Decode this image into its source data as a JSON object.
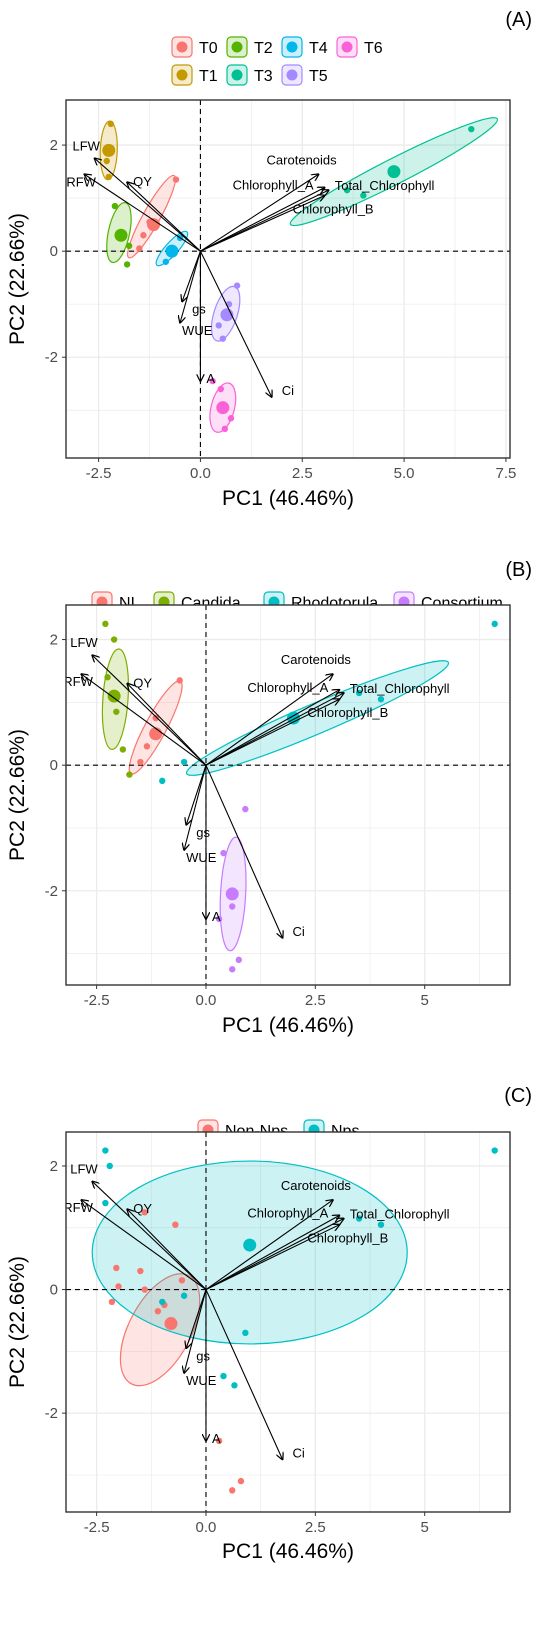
{
  "colors": {
    "T0": "#F8766D",
    "T1": "#C49A00",
    "T2": "#53B400",
    "T3": "#00C094",
    "T4": "#00B6EB",
    "T5": "#A58AFF",
    "T6": "#FB61D7",
    "NI": "#F8766D",
    "Candida": "#7CAE00",
    "Rhodotorula": "#00BFC4",
    "Consortium": "#C77CFF",
    "Non-Nps": "#F8766D",
    "Nps": "#00BFC4",
    "panel_border": "#333333",
    "grid": "#EBEBEB",
    "text": "#000000",
    "axis_text": "#4D4D4D"
  },
  "chart_data": [
    {
      "type": "scatter",
      "panel_label": "(A)",
      "xlabel": "PC1 (46.46%)",
      "ylabel": "PC2 (22.66%)",
      "xlim": [
        -3.3,
        7.6
      ],
      "ylim": [
        -3.9,
        2.85
      ],
      "xticks": [
        -2.5,
        0,
        2.5,
        5,
        7.5
      ],
      "xtick_labels": [
        "-2.5",
        "0.0",
        "2.5",
        "5.0",
        "7.5"
      ],
      "yticks": [
        -2,
        0,
        2
      ],
      "ytick_labels": [
        "-2",
        "0",
        "2"
      ],
      "grid": true,
      "legend_position": "top",
      "legend_rows": [
        [
          "T0",
          "T2",
          "T4",
          "T6"
        ],
        [
          "T1",
          "T3",
          "T5"
        ]
      ],
      "series": [
        {
          "name": "T0",
          "points": [
            [
              -1.4,
              0.3
            ],
            [
              -1.25,
              0.55
            ],
            [
              -0.6,
              1.35
            ],
            [
              -1.5,
              0.05
            ]
          ],
          "centroid": [
            -1.15,
            0.5
          ],
          "ellipse": {
            "cx": -1.2,
            "cy": 0.65,
            "rx": 1.15,
            "ry": 0.16,
            "angle_deg": 61
          }
        },
        {
          "name": "T1",
          "points": [
            [
              -2.2,
              2.4
            ],
            [
              -2.3,
              1.7
            ],
            [
              -2.25,
              1.4
            ]
          ],
          "centroid": [
            -2.25,
            1.9
          ],
          "ellipse": {
            "cx": -2.25,
            "cy": 1.9,
            "rx": 0.72,
            "ry": 0.16,
            "angle_deg": 88
          }
        },
        {
          "name": "T2",
          "points": [
            [
              -2.1,
              0.85
            ],
            [
              -1.8,
              -0.25
            ],
            [
              -1.75,
              0.1
            ],
            [
              -2.0,
              0.3
            ]
          ],
          "centroid": [
            -1.95,
            0.3
          ],
          "ellipse": {
            "cx": -2.0,
            "cy": 0.35,
            "rx": 0.75,
            "ry": 0.2,
            "angle_deg": 78
          }
        },
        {
          "name": "T3",
          "points": [
            [
              6.65,
              2.3
            ],
            [
              4.0,
              1.05
            ],
            [
              3.6,
              1.15
            ]
          ],
          "centroid": [
            4.75,
            1.5
          ],
          "ellipse": {
            "cx": 4.75,
            "cy": 1.5,
            "rx": 2.85,
            "ry": 0.24,
            "angle_deg": 27
          }
        },
        {
          "name": "T4",
          "points": [
            [
              -0.5,
              0.25
            ],
            [
              -0.85,
              -0.2
            ],
            [
              -0.7,
              -0.05
            ]
          ],
          "centroid": [
            -0.7,
            0.0
          ],
          "ellipse": {
            "cx": -0.7,
            "cy": 0.05,
            "rx": 0.55,
            "ry": 0.12,
            "angle_deg": 48
          }
        },
        {
          "name": "T5",
          "points": [
            [
              0.9,
              -0.65
            ],
            [
              0.45,
              -1.4
            ],
            [
              0.55,
              -1.65
            ],
            [
              0.7,
              -1.0
            ]
          ],
          "centroid": [
            0.65,
            -1.2
          ],
          "ellipse": {
            "cx": 0.62,
            "cy": -1.18,
            "rx": 0.7,
            "ry": 0.22,
            "angle_deg": 72
          }
        },
        {
          "name": "T6",
          "points": [
            [
              0.3,
              -2.45
            ],
            [
              0.6,
              -3.35
            ],
            [
              0.75,
              -3.15
            ],
            [
              0.5,
              -2.6
            ]
          ],
          "centroid": [
            0.55,
            -2.95
          ],
          "ellipse": {
            "cx": 0.55,
            "cy": -2.95,
            "rx": 0.62,
            "ry": 0.22,
            "angle_deg": 76
          }
        }
      ],
      "loadings": [
        {
          "label": "LFW",
          "end": [
            -2.6,
            1.75
          ]
        },
        {
          "label": "RFW",
          "end": [
            -2.85,
            1.45
          ]
        },
        {
          "label": "QY",
          "end": [
            -1.8,
            1.3
          ]
        },
        {
          "label": "Carotenoids",
          "end": [
            2.9,
            1.45
          ]
        },
        {
          "label": "Chlorophyll_A",
          "end": [
            3.05,
            1.2
          ]
        },
        {
          "label": "Total_Chlorophyll",
          "end": [
            3.15,
            1.15
          ]
        },
        {
          "label": "Chlorophyll_B",
          "end": [
            3.05,
            1.05
          ]
        },
        {
          "label": "gs",
          "end": [
            -0.45,
            -0.95
          ]
        },
        {
          "label": "WUE",
          "end": [
            -0.5,
            -1.35
          ]
        },
        {
          "label": "A",
          "end": [
            0.0,
            -2.45
          ]
        },
        {
          "label": "Ci",
          "end": [
            1.75,
            -2.75
          ]
        }
      ]
    },
    {
      "type": "scatter",
      "panel_label": "(B)",
      "xlabel": "PC1 (46.46%)",
      "ylabel": "PC2 (22.66%)",
      "xlim": [
        -3.2,
        6.95
      ],
      "ylim": [
        -3.5,
        2.55
      ],
      "xticks": [
        -2.5,
        0,
        2.5,
        5
      ],
      "xtick_labels": [
        "-2.5",
        "0.0",
        "2.5",
        "5"
      ],
      "yticks": [
        -2,
        0,
        2
      ],
      "ytick_labels": [
        "-2",
        "0",
        "2"
      ],
      "grid": true,
      "legend_position": "top",
      "legend_rows": [
        [
          "NI",
          "Candida",
          "Rhodotorula",
          "Consortium"
        ]
      ],
      "series": [
        {
          "name": "NI",
          "points": [
            [
              -1.5,
              0.05
            ],
            [
              -1.35,
              0.3
            ],
            [
              -0.6,
              1.35
            ],
            [
              -1.15,
              0.75
            ]
          ],
          "centroid": [
            -1.15,
            0.5
          ],
          "ellipse": {
            "cx": -1.15,
            "cy": 0.6,
            "rx": 1.2,
            "ry": 0.17,
            "angle_deg": 62
          }
        },
        {
          "name": "Candida",
          "points": [
            [
              -2.3,
              2.25
            ],
            [
              -2.1,
              2.0
            ],
            [
              -2.25,
              1.4
            ],
            [
              -2.05,
              0.85
            ],
            [
              -1.9,
              0.25
            ],
            [
              -1.75,
              -0.15
            ]
          ],
          "centroid": [
            -2.1,
            1.1
          ],
          "ellipse": {
            "cx": -2.07,
            "cy": 1.05,
            "rx": 1.15,
            "ry": 0.2,
            "angle_deg": 86
          }
        },
        {
          "name": "Rhodotorula",
          "points": [
            [
              6.6,
              2.25
            ],
            [
              3.5,
              1.15
            ],
            [
              4.0,
              1.05
            ],
            [
              2.0,
              0.75
            ],
            [
              -0.5,
              0.05
            ],
            [
              -1.0,
              -0.25
            ]
          ],
          "centroid": [
            2.0,
            0.75
          ],
          "ellipse": {
            "cx": 2.55,
            "cy": 0.75,
            "rx": 3.25,
            "ry": 0.24,
            "angle_deg": 23
          }
        },
        {
          "name": "Consortium",
          "points": [
            [
              0.9,
              -0.7
            ],
            [
              0.4,
              -1.4
            ],
            [
              0.6,
              -2.25
            ],
            [
              0.3,
              -2.45
            ],
            [
              0.6,
              -3.25
            ],
            [
              0.75,
              -3.1
            ]
          ],
          "centroid": [
            0.6,
            -2.05
          ],
          "ellipse": {
            "cx": 0.62,
            "cy": -2.05,
            "rx": 1.3,
            "ry": 0.2,
            "angle_deg": 87
          }
        }
      ],
      "loadings": [
        {
          "label": "LFW",
          "end": [
            -2.6,
            1.75
          ]
        },
        {
          "label": "RFW",
          "end": [
            -2.85,
            1.45
          ]
        },
        {
          "label": "QY",
          "end": [
            -1.8,
            1.3
          ]
        },
        {
          "label": "Carotenoids",
          "end": [
            2.9,
            1.45
          ]
        },
        {
          "label": "Chlorophyll_A",
          "end": [
            3.05,
            1.2
          ]
        },
        {
          "label": "Total_Chlorophyll",
          "end": [
            3.15,
            1.15
          ]
        },
        {
          "label": "Chlorophyll_B",
          "end": [
            3.05,
            1.05
          ]
        },
        {
          "label": "gs",
          "end": [
            -0.45,
            -0.95
          ]
        },
        {
          "label": "WUE",
          "end": [
            -0.5,
            -1.35
          ]
        },
        {
          "label": "A",
          "end": [
            0.0,
            -2.45
          ]
        },
        {
          "label": "Ci",
          "end": [
            1.75,
            -2.75
          ]
        }
      ]
    },
    {
      "type": "scatter",
      "panel_label": "(C)",
      "xlabel": "PC1 (46.46%)",
      "ylabel": "PC2 (22.66%)",
      "xlim": [
        -3.2,
        6.95
      ],
      "ylim": [
        -3.6,
        2.55
      ],
      "xticks": [
        -2.5,
        0,
        2.5,
        5
      ],
      "xtick_labels": [
        "-2.5",
        "0.0",
        "2.5",
        "5"
      ],
      "yticks": [
        -2,
        0,
        2
      ],
      "ytick_labels": [
        "-2",
        "0",
        "2"
      ],
      "grid": true,
      "legend_position": "top",
      "legend_rows": [
        [
          "Non-Nps",
          "Nps"
        ]
      ],
      "series": [
        {
          "name": "Non-Nps",
          "points": [
            [
              -1.4,
              1.25
            ],
            [
              -0.7,
              1.05
            ],
            [
              -2.05,
              0.35
            ],
            [
              -2.15,
              -0.2
            ],
            [
              -1.5,
              0.3
            ],
            [
              -2.0,
              0.05
            ],
            [
              -1.4,
              0.0
            ],
            [
              -0.55,
              0.15
            ],
            [
              -1.1,
              -0.35
            ],
            [
              -0.95,
              -0.25
            ],
            [
              0.3,
              -2.45
            ],
            [
              0.8,
              -3.1
            ],
            [
              0.6,
              -3.25
            ]
          ],
          "centroid": [
            -0.8,
            -0.55
          ],
          "ellipse": {
            "cx": -1.05,
            "cy": -0.65,
            "rx": 1.4,
            "ry": 0.5,
            "angle_deg": 62
          }
        },
        {
          "name": "Nps",
          "points": [
            [
              -2.3,
              2.25
            ],
            [
              -2.2,
              2.0
            ],
            [
              -2.3,
              1.4
            ],
            [
              6.6,
              2.25
            ],
            [
              3.5,
              1.15
            ],
            [
              4.0,
              1.05
            ],
            [
              0.9,
              -0.7
            ],
            [
              0.4,
              -1.4
            ],
            [
              0.65,
              -1.55
            ],
            [
              -0.5,
              -0.1
            ],
            [
              -1.0,
              -0.2
            ]
          ],
          "centroid": [
            1.0,
            0.72
          ],
          "ellipse": {
            "cx": 1.0,
            "cy": 0.6,
            "rx": 3.6,
            "ry": 1.48,
            "angle_deg": 0
          }
        }
      ],
      "loadings": [
        {
          "label": "LFW",
          "end": [
            -2.6,
            1.75
          ]
        },
        {
          "label": "RFW",
          "end": [
            -2.85,
            1.45
          ]
        },
        {
          "label": "QY",
          "end": [
            -1.8,
            1.3
          ]
        },
        {
          "label": "Carotenoids",
          "end": [
            2.9,
            1.45
          ]
        },
        {
          "label": "Chlorophyll_A",
          "end": [
            3.05,
            1.2
          ]
        },
        {
          "label": "Total_Chlorophyll",
          "end": [
            3.15,
            1.15
          ]
        },
        {
          "label": "Chlorophyll_B",
          "end": [
            3.05,
            1.05
          ]
        },
        {
          "label": "gs",
          "end": [
            -0.45,
            -0.95
          ]
        },
        {
          "label": "WUE",
          "end": [
            -0.5,
            -1.35
          ]
        },
        {
          "label": "A",
          "end": [
            0.0,
            -2.45
          ]
        },
        {
          "label": "Ci",
          "end": [
            1.75,
            -2.75
          ]
        }
      ]
    }
  ]
}
